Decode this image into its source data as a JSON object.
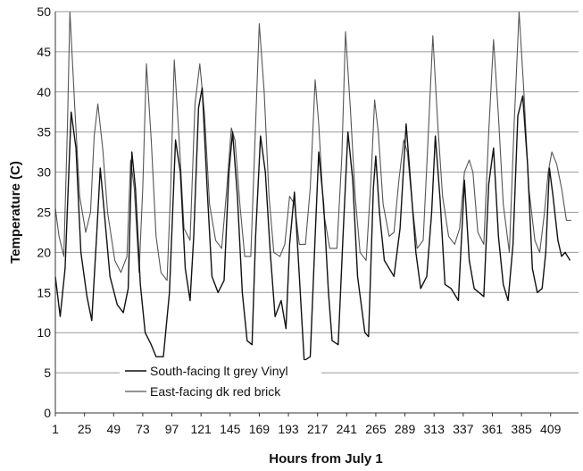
{
  "chart_data": {
    "type": "line",
    "xlabel": "Hours from July 1",
    "ylabel": "Temperature (C)",
    "xlim": [
      1,
      432
    ],
    "ylim": [
      0,
      50
    ],
    "x_ticks": [
      1,
      25,
      49,
      73,
      97,
      121,
      145,
      169,
      193,
      217,
      241,
      265,
      289,
      313,
      337,
      361,
      385,
      409
    ],
    "y_ticks": [
      0,
      5,
      10,
      15,
      20,
      25,
      30,
      35,
      40,
      45,
      50
    ],
    "grid": "horizontal",
    "legend_position": "bottom-left",
    "series": [
      {
        "name": "South-facing lt grey Vinyl",
        "color": "#111111",
        "points": [
          [
            1,
            17
          ],
          [
            5,
            12
          ],
          [
            9,
            18
          ],
          [
            14,
            37.5
          ],
          [
            18,
            33
          ],
          [
            22,
            20
          ],
          [
            27,
            14.5
          ],
          [
            31,
            11.5
          ],
          [
            35,
            22
          ],
          [
            38,
            30.5
          ],
          [
            41,
            25.5
          ],
          [
            46,
            17
          ],
          [
            52,
            13.5
          ],
          [
            57,
            12.5
          ],
          [
            61,
            15.5
          ],
          [
            64,
            32.5
          ],
          [
            67,
            28
          ],
          [
            71,
            16
          ],
          [
            75,
            10
          ],
          [
            80,
            8.5
          ],
          [
            84,
            7
          ],
          [
            90,
            7
          ],
          [
            95,
            15
          ],
          [
            100,
            34
          ],
          [
            104,
            30
          ],
          [
            108,
            18
          ],
          [
            112,
            14
          ],
          [
            115,
            22
          ],
          [
            119,
            38
          ],
          [
            122,
            40.5
          ],
          [
            126,
            28
          ],
          [
            130,
            17
          ],
          [
            135,
            15
          ],
          [
            140,
            16.5
          ],
          [
            144,
            30
          ],
          [
            147,
            35
          ],
          [
            151,
            27
          ],
          [
            155,
            15
          ],
          [
            159,
            9
          ],
          [
            163,
            8.5
          ],
          [
            166,
            22
          ],
          [
            170,
            34.5
          ],
          [
            174,
            30
          ],
          [
            178,
            20
          ],
          [
            182,
            12
          ],
          [
            187,
            14
          ],
          [
            191,
            10.5
          ],
          [
            194,
            21
          ],
          [
            198,
            27.5
          ],
          [
            202,
            17
          ],
          [
            206,
            6.5
          ],
          [
            211,
            7
          ],
          [
            215,
            22
          ],
          [
            218,
            32.5
          ],
          [
            222,
            26
          ],
          [
            226,
            15
          ],
          [
            229,
            9
          ],
          [
            234,
            8.5
          ],
          [
            238,
            22
          ],
          [
            242,
            35
          ],
          [
            246,
            29
          ],
          [
            250,
            17
          ],
          [
            256,
            10
          ],
          [
            259,
            9.5
          ],
          [
            263,
            28
          ],
          [
            265,
            32
          ],
          [
            268,
            25
          ],
          [
            272,
            19
          ],
          [
            280,
            17
          ],
          [
            285,
            23
          ],
          [
            290,
            36
          ],
          [
            294,
            28
          ],
          [
            298,
            20
          ],
          [
            302,
            15.5
          ],
          [
            307,
            17
          ],
          [
            311,
            25
          ],
          [
            314,
            34.5
          ],
          [
            318,
            26.5
          ],
          [
            322,
            16
          ],
          [
            327,
            15.5
          ],
          [
            333,
            14
          ],
          [
            338,
            29
          ],
          [
            342,
            19
          ],
          [
            346,
            15.5
          ],
          [
            350,
            15
          ],
          [
            354,
            14.5
          ],
          [
            358,
            28.5
          ],
          [
            362,
            33
          ],
          [
            366,
            22
          ],
          [
            370,
            16
          ],
          [
            374,
            14
          ],
          [
            378,
            21
          ],
          [
            382,
            37
          ],
          [
            386,
            39.5
          ],
          [
            390,
            31
          ],
          [
            394,
            18
          ],
          [
            398,
            15
          ],
          [
            402,
            15.5
          ],
          [
            405,
            20
          ],
          [
            408,
            30.5
          ],
          [
            411,
            27
          ],
          [
            415,
            21.5
          ],
          [
            418,
            19.5
          ],
          [
            421,
            20
          ],
          [
            425,
            19
          ]
        ]
      },
      {
        "name": "East-facing dk red brick",
        "color": "#555555",
        "points": [
          [
            1,
            25.5
          ],
          [
            4,
            22
          ],
          [
            8,
            19.5
          ],
          [
            11,
            36
          ],
          [
            13,
            50
          ],
          [
            17,
            38
          ],
          [
            21,
            27
          ],
          [
            26,
            22.5
          ],
          [
            30,
            25
          ],
          [
            33,
            34.5
          ],
          [
            36,
            38.5
          ],
          [
            40,
            33
          ],
          [
            44,
            25
          ],
          [
            50,
            19
          ],
          [
            55,
            17.5
          ],
          [
            60,
            19.5
          ],
          [
            63,
            31.5
          ],
          [
            66,
            28
          ],
          [
            70,
            17.5
          ],
          [
            73,
            28
          ],
          [
            76,
            43.5
          ],
          [
            80,
            34
          ],
          [
            84,
            22
          ],
          [
            88,
            17.5
          ],
          [
            93,
            16.5
          ],
          [
            96,
            28
          ],
          [
            99,
            44
          ],
          [
            103,
            34
          ],
          [
            107,
            23
          ],
          [
            112,
            21.5
          ],
          [
            116,
            38.5
          ],
          [
            120,
            43.5
          ],
          [
            124,
            37
          ],
          [
            128,
            26
          ],
          [
            133,
            21.5
          ],
          [
            138,
            20.5
          ],
          [
            142,
            27.5
          ],
          [
            146,
            35.5
          ],
          [
            149,
            34
          ],
          [
            153,
            26
          ],
          [
            157,
            19.5
          ],
          [
            162,
            19.5
          ],
          [
            166,
            36
          ],
          [
            169,
            48.5
          ],
          [
            173,
            40
          ],
          [
            177,
            27
          ],
          [
            181,
            20
          ],
          [
            186,
            19.5
          ],
          [
            190,
            21
          ],
          [
            194,
            27
          ],
          [
            198,
            26
          ],
          [
            202,
            21
          ],
          [
            207,
            21
          ],
          [
            211,
            28
          ],
          [
            215,
            41.5
          ],
          [
            218,
            36
          ],
          [
            222,
            25
          ],
          [
            227,
            20.5
          ],
          [
            233,
            20.5
          ],
          [
            237,
            32
          ],
          [
            240,
            47.5
          ],
          [
            244,
            38
          ],
          [
            248,
            27
          ],
          [
            252,
            20
          ],
          [
            257,
            19
          ],
          [
            261,
            29
          ],
          [
            264,
            39
          ],
          [
            267,
            35
          ],
          [
            271,
            26
          ],
          [
            276,
            22
          ],
          [
            280,
            22.5
          ],
          [
            284,
            29
          ],
          [
            288,
            34
          ],
          [
            291,
            32.5
          ],
          [
            295,
            26
          ],
          [
            299,
            20.5
          ],
          [
            304,
            21.5
          ],
          [
            308,
            34
          ],
          [
            312,
            47
          ],
          [
            316,
            36
          ],
          [
            320,
            27
          ],
          [
            325,
            22
          ],
          [
            330,
            21
          ],
          [
            334,
            23
          ],
          [
            338,
            30
          ],
          [
            342,
            31.5
          ],
          [
            345,
            30
          ],
          [
            349,
            22.5
          ],
          [
            354,
            21
          ],
          [
            358,
            35
          ],
          [
            362,
            46.5
          ],
          [
            366,
            37
          ],
          [
            370,
            26
          ],
          [
            375,
            20
          ],
          [
            379,
            36
          ],
          [
            383,
            50
          ],
          [
            387,
            40
          ],
          [
            391,
            28
          ],
          [
            396,
            21.5
          ],
          [
            400,
            20
          ],
          [
            404,
            25
          ],
          [
            407,
            30
          ],
          [
            410,
            32.5
          ],
          [
            414,
            31
          ],
          [
            418,
            28
          ],
          [
            422,
            24
          ],
          [
            426,
            24
          ]
        ]
      }
    ]
  }
}
